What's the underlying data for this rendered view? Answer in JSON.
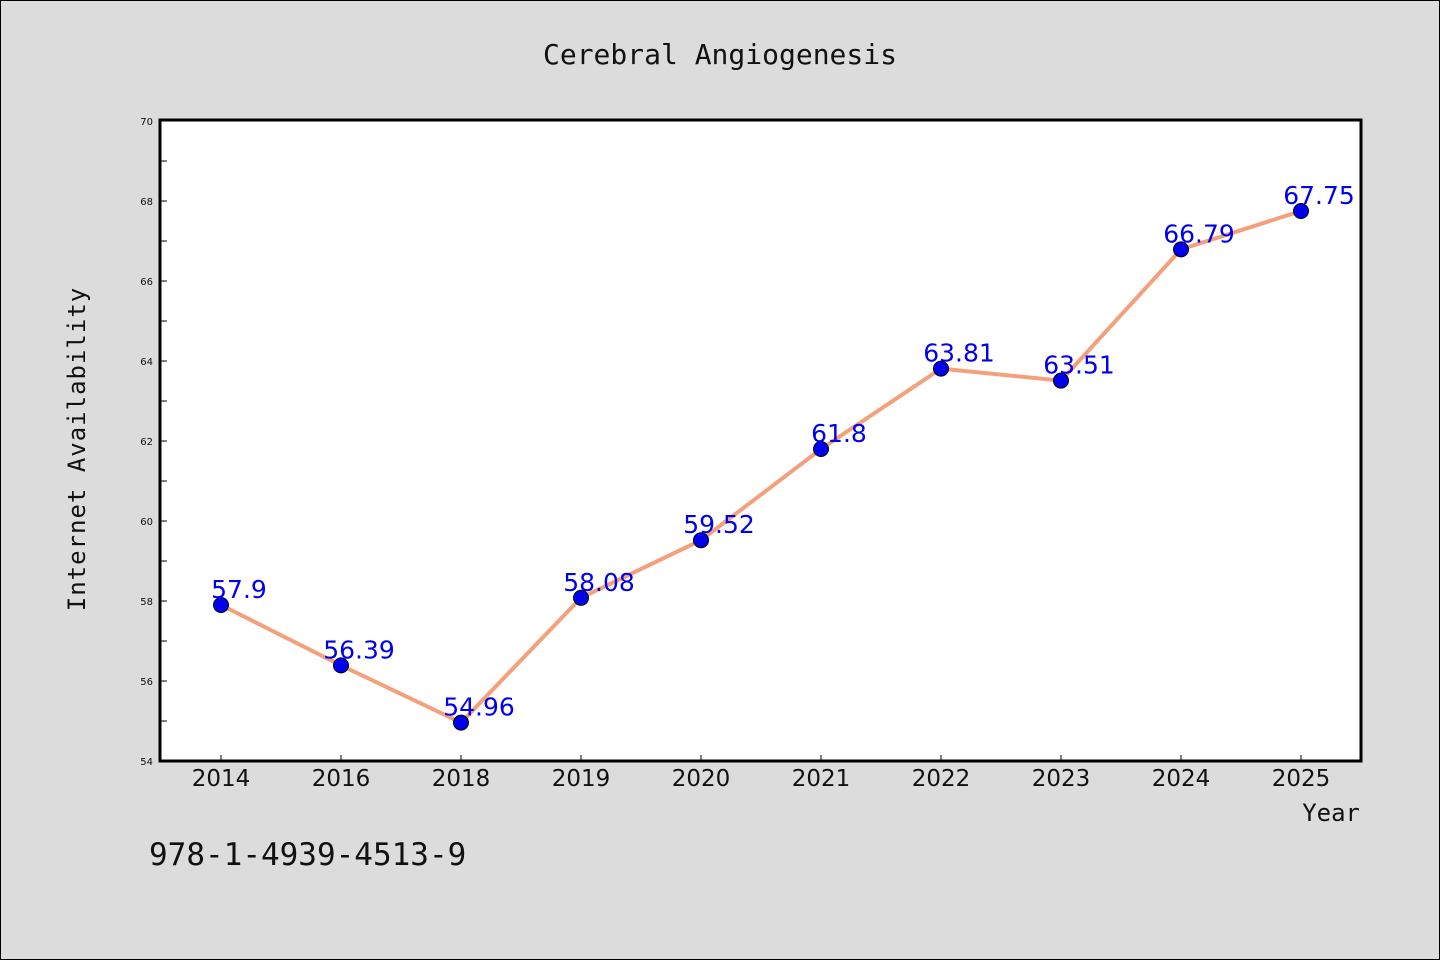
{
  "colors": {
    "background": "#dcdcdc",
    "plot_area": "#ffffff",
    "line": "#f4a07c",
    "marker": "#0000ee",
    "data_label": "#0000ee"
  },
  "footer": {
    "isbn": "978-1-4939-4513-9"
  },
  "chart_data": {
    "type": "line",
    "title": "Cerebral Angiogenesis",
    "xlabel": "Year",
    "ylabel": "Internet Availability",
    "categories": [
      "2014",
      "2016",
      "2018",
      "2019",
      "2020",
      "2021",
      "2022",
      "2023",
      "2024",
      "2025"
    ],
    "values": [
      57.9,
      56.39,
      54.96,
      58.08,
      59.52,
      61.8,
      63.81,
      63.51,
      66.79,
      67.75
    ],
    "data_labels": [
      "57.9",
      "56.39",
      "54.96",
      "58.08",
      "59.52",
      "61.8",
      "63.81",
      "63.51",
      "66.79",
      "67.75"
    ],
    "ylim": [
      54,
      70
    ],
    "y_ticks": [
      "54",
      "56",
      "58",
      "60",
      "62",
      "64",
      "66",
      "68",
      "70"
    ],
    "grid": false,
    "legend": "none",
    "markers": "circle"
  }
}
